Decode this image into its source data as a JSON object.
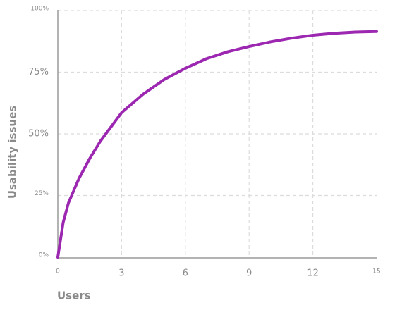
{
  "chart_data": {
    "type": "line",
    "x_label": "Users",
    "y_label": "Usability issues",
    "series": [
      {
        "color": "#9c27b0",
        "x": [
          0,
          0.25,
          0.5,
          1,
          1.5,
          2,
          3,
          4,
          5,
          6,
          7,
          8,
          9,
          10,
          11,
          12,
          13,
          14,
          15
        ],
        "values": [
          0,
          14,
          22,
          32,
          40,
          47,
          58.6,
          66,
          72,
          76.6,
          80.5,
          83.3,
          85.4,
          87.3,
          88.8,
          90,
          90.8,
          91.3,
          91.5
        ]
      }
    ],
    "xlim": [
      0,
      15
    ],
    "xticks": [
      0,
      3,
      6,
      9,
      12,
      15
    ],
    "ylim": [
      0,
      100
    ],
    "yticks": [
      {
        "value": 0,
        "label": "0%"
      },
      {
        "value": 25,
        "label": "25%"
      },
      {
        "value": 50,
        "label": "50%"
      },
      {
        "value": 75,
        "label": "75%"
      },
      {
        "value": 100,
        "label": "100%"
      }
    ],
    "grid": true
  }
}
